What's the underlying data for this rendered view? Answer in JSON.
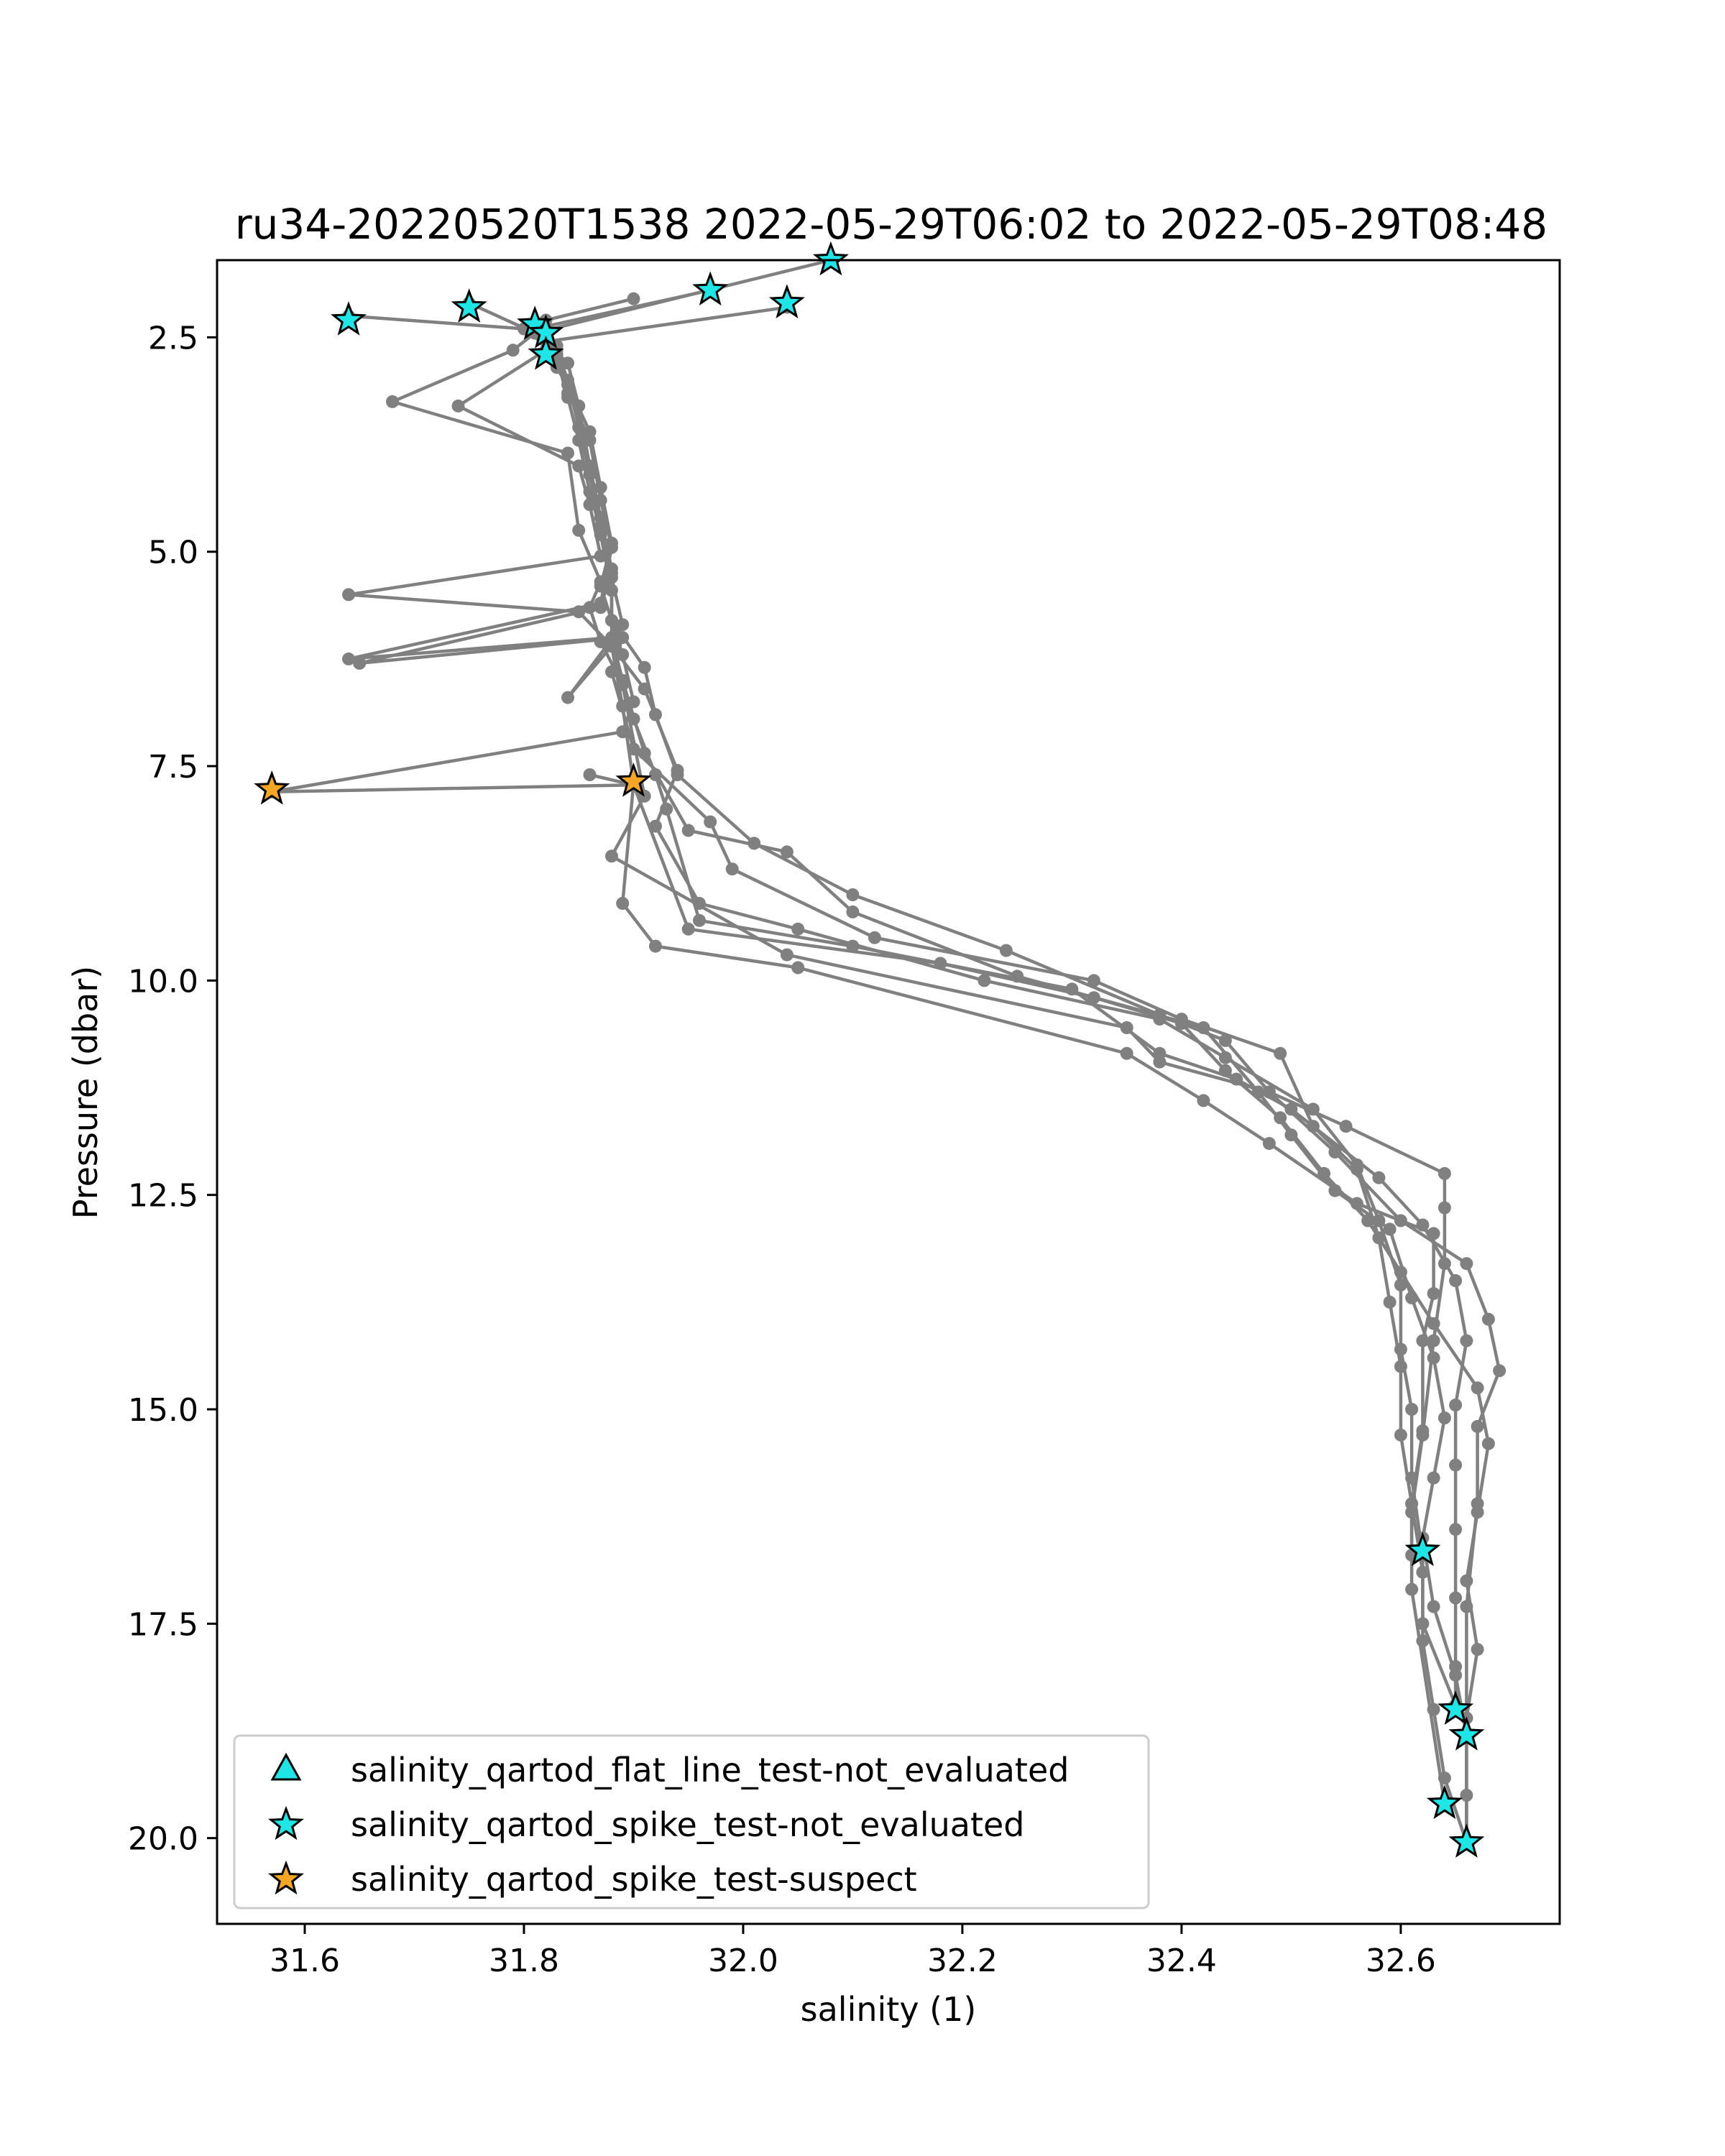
{
  "chart_data": {
    "type": "scatter",
    "title": "ru34-20220520T1538 2022-05-29T06:02 to 2022-05-29T08:48",
    "xlabel": "salinity (1)",
    "ylabel": "Pressure (dbar)",
    "xlim": [
      31.52,
      32.745
    ],
    "ylim": [
      21.0,
      1.6
    ],
    "y_inverted": true,
    "grid": false,
    "legend_position": "lower-left",
    "x_ticks": [
      31.6,
      31.8,
      32.0,
      32.2,
      32.4,
      32.6
    ],
    "x_tick_labels": [
      "31.6",
      "31.8",
      "32.0",
      "32.2",
      "32.4",
      "32.6"
    ],
    "y_ticks": [
      2.5,
      5.0,
      7.5,
      10.0,
      12.5,
      15.0,
      17.5,
      20.0
    ],
    "y_tick_labels": [
      "2.5",
      "5.0",
      "7.5",
      "10.0",
      "12.5",
      "15.0",
      "17.5",
      "20.0"
    ],
    "profile_color": "#808080",
    "profiles": [
      {
        "points": [
          [
            32.08,
            1.6
          ],
          [
            31.81,
            2.45
          ],
          [
            31.79,
            2.65
          ],
          [
            31.68,
            3.25
          ],
          [
            31.84,
            3.85
          ],
          [
            31.85,
            4.75
          ],
          [
            31.87,
            5.35
          ],
          [
            31.86,
            5.65
          ],
          [
            31.87,
            6.05
          ],
          [
            31.89,
            6.55
          ],
          [
            31.91,
            7.85
          ],
          [
            31.88,
            8.55
          ],
          [
            32.04,
            9.7
          ],
          [
            32.35,
            10.55
          ],
          [
            32.38,
            10.95
          ],
          [
            32.48,
            11.3
          ],
          [
            32.55,
            11.7
          ],
          [
            32.64,
            12.25
          ],
          [
            32.64,
            12.65
          ],
          [
            32.64,
            13.3
          ],
          [
            32.63,
            14.2
          ],
          [
            32.62,
            15.3
          ],
          [
            32.61,
            16.2
          ],
          [
            32.61,
            17.1
          ],
          [
            32.64,
            19.6
          ]
        ]
      },
      {
        "points": [
          [
            31.82,
            2.65
          ],
          [
            31.74,
            3.3
          ],
          [
            31.85,
            4.0
          ],
          [
            31.86,
            4.45
          ],
          [
            31.87,
            5.05
          ],
          [
            31.64,
            5.5
          ],
          [
            31.85,
            5.7
          ],
          [
            31.88,
            6.1
          ],
          [
            31.89,
            6.8
          ],
          [
            31.9,
            7.7
          ],
          [
            31.89,
            9.1
          ],
          [
            31.92,
            9.6
          ],
          [
            32.05,
            9.85
          ],
          [
            32.35,
            10.85
          ],
          [
            32.42,
            11.4
          ],
          [
            32.48,
            11.9
          ],
          [
            32.56,
            12.6
          ],
          [
            32.63,
            12.95
          ],
          [
            32.63,
            13.65
          ],
          [
            32.62,
            14.2
          ],
          [
            32.62,
            15.25
          ],
          [
            32.61,
            16.1
          ],
          [
            32.61,
            16.7
          ]
        ]
      },
      {
        "points": [
          [
            32.04,
            2.15
          ],
          [
            31.82,
            2.55
          ],
          [
            31.83,
            2.85
          ],
          [
            31.85,
            3.3
          ],
          [
            31.86,
            4.1
          ],
          [
            31.87,
            4.8
          ],
          [
            31.88,
            5.45
          ],
          [
            31.88,
            6.1
          ],
          [
            31.91,
            6.6
          ],
          [
            31.94,
            7.55
          ],
          [
            31.92,
            8.2
          ],
          [
            31.96,
            9.1
          ],
          [
            32.05,
            9.4
          ],
          [
            32.22,
            10.0
          ],
          [
            32.38,
            10.45
          ],
          [
            32.44,
            10.9
          ],
          [
            32.52,
            11.5
          ],
          [
            32.56,
            12.15
          ],
          [
            32.58,
            12.8
          ],
          [
            32.6,
            13.55
          ],
          [
            32.6,
            14.3
          ],
          [
            32.61,
            15.0
          ],
          [
            32.61,
            15.8
          ],
          [
            32.62,
            16.7
          ],
          [
            32.62,
            17.5
          ],
          [
            32.65,
            18.45
          ]
        ]
      },
      {
        "points": [
          [
            31.64,
            2.25
          ],
          [
            31.8,
            2.4
          ],
          [
            31.83,
            2.7
          ],
          [
            31.84,
            3.15
          ],
          [
            31.86,
            3.7
          ],
          [
            31.87,
            4.4
          ],
          [
            31.88,
            4.95
          ],
          [
            31.87,
            5.6
          ],
          [
            31.64,
            6.25
          ],
          [
            31.88,
            6.0
          ],
          [
            31.89,
            6.5
          ],
          [
            31.91,
            7.35
          ],
          [
            31.95,
            8.25
          ],
          [
            32.04,
            8.5
          ],
          [
            32.1,
            9.2
          ],
          [
            32.25,
            9.95
          ],
          [
            32.42,
            10.55
          ],
          [
            32.47,
            11.3
          ],
          [
            32.5,
            11.8
          ],
          [
            32.54,
            12.45
          ],
          [
            32.59,
            12.9
          ],
          [
            32.61,
            13.7
          ],
          [
            32.63,
            14.4
          ],
          [
            32.64,
            15.1
          ],
          [
            32.63,
            15.8
          ],
          [
            32.62,
            16.5
          ],
          [
            32.63,
            17.3
          ],
          [
            32.65,
            18.1
          ],
          [
            32.66,
            18.8
          ]
        ]
      },
      {
        "points": [
          [
            31.75,
            2.1
          ],
          [
            31.81,
            2.45
          ],
          [
            31.84,
            2.8
          ],
          [
            31.85,
            3.3
          ],
          [
            31.86,
            4.0
          ],
          [
            31.87,
            4.6
          ],
          [
            31.88,
            5.2
          ],
          [
            31.87,
            5.65
          ],
          [
            31.65,
            6.3
          ],
          [
            31.89,
            6.0
          ],
          [
            31.88,
            6.4
          ],
          [
            31.9,
            7.3
          ],
          [
            31.97,
            8.15
          ],
          [
            31.99,
            8.7
          ],
          [
            32.12,
            9.5
          ],
          [
            32.32,
            10.0
          ],
          [
            32.4,
            10.45
          ],
          [
            32.49,
            10.85
          ],
          [
            32.52,
            11.7
          ],
          [
            32.56,
            12.2
          ],
          [
            32.58,
            13.0
          ],
          [
            32.59,
            13.75
          ],
          [
            32.6,
            14.5
          ],
          [
            32.6,
            15.3
          ],
          [
            32.61,
            16.1
          ],
          [
            32.62,
            16.9
          ],
          [
            32.62,
            17.7
          ],
          [
            32.63,
            18.5
          ],
          [
            32.64,
            19.3
          ],
          [
            32.66,
            20.05
          ]
        ]
      },
      {
        "points": [
          [
            31.97,
            1.95
          ],
          [
            31.81,
            2.4
          ],
          [
            31.83,
            2.6
          ],
          [
            31.84,
            3.05
          ],
          [
            31.86,
            3.6
          ],
          [
            31.87,
            4.25
          ],
          [
            31.88,
            4.9
          ],
          [
            31.87,
            5.4
          ],
          [
            31.88,
            5.8
          ],
          [
            31.91,
            6.35
          ],
          [
            31.92,
            6.9
          ],
          [
            31.94,
            7.6
          ],
          [
            32.01,
            8.4
          ],
          [
            32.1,
            9.0
          ],
          [
            32.24,
            9.65
          ],
          [
            32.38,
            10.4
          ],
          [
            32.44,
            10.7
          ],
          [
            32.48,
            11.3
          ],
          [
            32.54,
            12.0
          ],
          [
            32.6,
            12.8
          ],
          [
            32.66,
            13.3
          ],
          [
            32.68,
            13.95
          ],
          [
            32.69,
            14.55
          ],
          [
            32.67,
            15.2
          ],
          [
            32.67,
            16.1
          ],
          [
            32.66,
            17.3
          ],
          [
            32.66,
            18.6
          ],
          [
            32.66,
            20.05
          ]
        ]
      },
      {
        "points": [
          [
            31.82,
            2.5
          ],
          [
            31.83,
            2.75
          ],
          [
            31.84,
            3.2
          ],
          [
            31.85,
            3.7
          ],
          [
            31.86,
            4.3
          ],
          [
            31.87,
            4.75
          ],
          [
            31.88,
            5.3
          ],
          [
            31.89,
            5.85
          ],
          [
            31.84,
            6.7
          ],
          [
            31.88,
            6.1
          ],
          [
            31.9,
            6.95
          ],
          [
            31.92,
            7.6
          ],
          [
            31.93,
            8.0
          ],
          [
            31.96,
            9.3
          ],
          [
            32.1,
            9.6
          ],
          [
            32.3,
            10.1
          ],
          [
            32.38,
            10.85
          ],
          [
            32.45,
            11.15
          ],
          [
            32.5,
            11.5
          ],
          [
            32.58,
            12.3
          ],
          [
            32.62,
            12.85
          ],
          [
            32.65,
            13.5
          ],
          [
            32.66,
            14.2
          ],
          [
            32.65,
            14.95
          ],
          [
            32.65,
            15.65
          ],
          [
            32.65,
            16.4
          ],
          [
            32.65,
            17.2
          ],
          [
            32.65,
            18.0
          ],
          [
            32.65,
            18.45
          ]
        ]
      },
      {
        "points": [
          [
            31.9,
            2.05
          ],
          [
            31.82,
            2.3
          ],
          [
            31.83,
            2.65
          ],
          [
            31.84,
            3.0
          ],
          [
            31.85,
            3.55
          ],
          [
            31.86,
            4.1
          ],
          [
            31.87,
            4.7
          ],
          [
            31.88,
            5.25
          ],
          [
            31.88,
            5.8
          ],
          [
            31.89,
            6.2
          ],
          [
            31.9,
            6.75
          ],
          [
            31.89,
            7.1
          ],
          [
            31.57,
            7.8
          ],
          [
            31.9,
            7.72
          ],
          [
            31.95,
            9.4
          ],
          [
            32.18,
            9.8
          ],
          [
            32.32,
            10.2
          ],
          [
            32.4,
            10.5
          ],
          [
            32.44,
            11.05
          ],
          [
            32.49,
            11.6
          ],
          [
            32.53,
            12.25
          ],
          [
            32.57,
            12.8
          ],
          [
            32.6,
            13.4
          ],
          [
            32.63,
            14.0
          ],
          [
            32.67,
            14.75
          ],
          [
            32.68,
            15.4
          ],
          [
            32.67,
            16.2
          ],
          [
            32.66,
            17.0
          ],
          [
            32.67,
            17.8
          ],
          [
            32.66,
            18.6
          ],
          [
            32.66,
            19.5
          ],
          [
            32.66,
            20.05
          ]
        ]
      },
      {
        "points": [
          [
            31.9,
            7.72
          ],
          [
            31.86,
            7.6
          ]
        ]
      }
    ],
    "flagged": [
      {
        "flag": "salinity_qartod_spike_test-not_evaluated",
        "marker": "star",
        "color": "#1ee6e6",
        "points": [
          [
            32.08,
            1.6
          ],
          [
            31.97,
            1.95
          ],
          [
            32.04,
            2.1
          ],
          [
            31.75,
            2.15
          ],
          [
            31.64,
            2.3
          ],
          [
            31.81,
            2.35
          ],
          [
            31.82,
            2.45
          ],
          [
            31.82,
            2.7
          ],
          [
            32.62,
            16.65
          ],
          [
            32.65,
            18.5
          ],
          [
            32.66,
            18.8
          ],
          [
            32.64,
            19.6
          ],
          [
            32.66,
            20.05
          ]
        ]
      },
      {
        "flag": "salinity_qartod_spike_test-suspect",
        "marker": "star",
        "color": "#f5a623",
        "points": [
          [
            31.57,
            7.77
          ],
          [
            31.9,
            7.68
          ]
        ]
      }
    ],
    "legend": [
      {
        "label": "salinity_qartod_flat_line_test-not_evaluated",
        "marker": "triangle",
        "color": "#1ee6e6"
      },
      {
        "label": "salinity_qartod_spike_test-not_evaluated",
        "marker": "star",
        "color": "#1ee6e6"
      },
      {
        "label": "salinity_qartod_spike_test-suspect",
        "marker": "star",
        "color": "#f5a623"
      }
    ]
  }
}
